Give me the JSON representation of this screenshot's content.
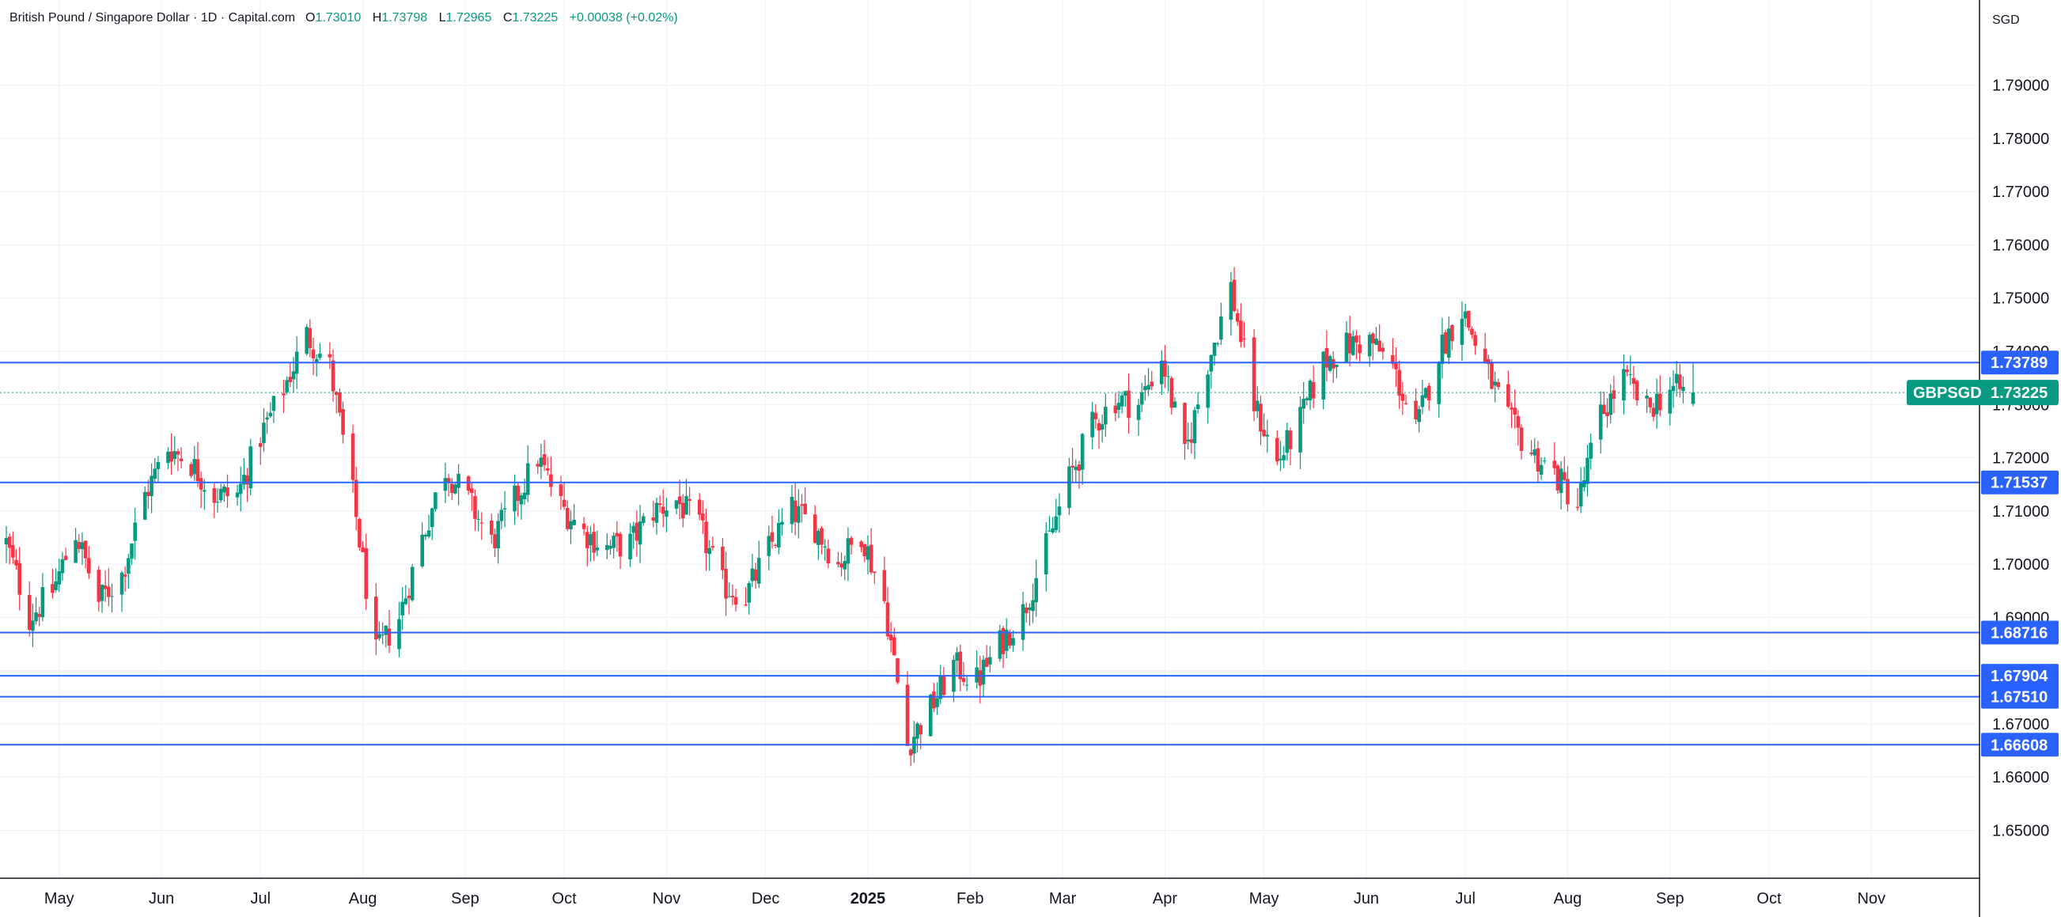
{
  "header": {
    "title": "British Pound / Singapore Dollar · 1D · Capital.com",
    "open_label": "O",
    "open": "1.73010",
    "high_label": "H",
    "high": "1.73798",
    "low_label": "L",
    "low": "1.72965",
    "close_label": "C",
    "close": "1.73225",
    "change": "+0.00038 (+0.02%)"
  },
  "currency": "SGD",
  "symbol_tag": {
    "symbol": "GBPSGD",
    "price": "1.73225",
    "value": 1.73225,
    "color": "#089981"
  },
  "colors": {
    "up": "#089981",
    "down": "#f23645",
    "hline": "#2962ff",
    "grid": "#eef1f6",
    "axis": "#131722"
  },
  "chart_data": {
    "type": "candlestick",
    "title": "British Pound / Singapore Dollar · 1D · Capital.com",
    "ylabel": "SGD",
    "ylim": [
      1.641,
      1.806
    ],
    "grid": true,
    "y_ticks": [
      {
        "value": 1.79,
        "label": "1.79000"
      },
      {
        "value": 1.78,
        "label": "1.78000"
      },
      {
        "value": 1.77,
        "label": "1.77000"
      },
      {
        "value": 1.76,
        "label": "1.76000"
      },
      {
        "value": 1.75,
        "label": "1.75000"
      },
      {
        "value": 1.74,
        "label": "1.74000"
      },
      {
        "value": 1.73,
        "label": "1.73000"
      },
      {
        "value": 1.72,
        "label": "1.72000"
      },
      {
        "value": 1.71,
        "label": "1.71000"
      },
      {
        "value": 1.7,
        "label": "1.70000"
      },
      {
        "value": 1.69,
        "label": "1.69000"
      },
      {
        "value": 1.68,
        "label": "1.68000"
      },
      {
        "value": 1.67,
        "label": "1.67000"
      },
      {
        "value": 1.66,
        "label": "1.66000"
      },
      {
        "value": 1.65,
        "label": "1.65000"
      }
    ],
    "x_ticks": [
      {
        "label": "May",
        "bold": false
      },
      {
        "label": "Jun",
        "bold": false
      },
      {
        "label": "Jul",
        "bold": false
      },
      {
        "label": "Aug",
        "bold": false
      },
      {
        "label": "Sep",
        "bold": false
      },
      {
        "label": "Oct",
        "bold": false
      },
      {
        "label": "Nov",
        "bold": false
      },
      {
        "label": "Dec",
        "bold": false
      },
      {
        "label": "2025",
        "bold": true
      },
      {
        "label": "Feb",
        "bold": false
      },
      {
        "label": "Mar",
        "bold": false
      },
      {
        "label": "Apr",
        "bold": false
      },
      {
        "label": "May",
        "bold": false
      },
      {
        "label": "Jun",
        "bold": false
      },
      {
        "label": "Jul",
        "bold": false
      },
      {
        "label": "Aug",
        "bold": false
      },
      {
        "label": "Sep",
        "bold": false
      },
      {
        "label": "Oct",
        "bold": false
      },
      {
        "label": "Nov",
        "bold": false
      }
    ],
    "horizontal_lines": [
      {
        "value": 1.73789,
        "label": "1.73789"
      },
      {
        "value": 1.71537,
        "label": "1.71537"
      },
      {
        "value": 1.68716,
        "label": "1.68716"
      },
      {
        "value": 1.67904,
        "label": "1.67904"
      },
      {
        "value": 1.6751,
        "label": "1.67510"
      },
      {
        "value": 1.66608,
        "label": "1.66608"
      }
    ],
    "series": [
      {
        "name": "GBPSGD",
        "close_path": [
          {
            "d": "2024-04-15",
            "c": 1.704
          },
          {
            "d": "2024-04-22",
            "c": 1.69
          },
          {
            "d": "2024-04-29",
            "c": 1.695
          },
          {
            "d": "2024-05-06",
            "c": 1.706
          },
          {
            "d": "2024-05-13",
            "c": 1.693
          },
          {
            "d": "2024-05-20",
            "c": 1.698
          },
          {
            "d": "2024-05-27",
            "c": 1.713
          },
          {
            "d": "2024-06-03",
            "c": 1.722
          },
          {
            "d": "2024-06-10",
            "c": 1.719
          },
          {
            "d": "2024-06-17",
            "c": 1.713
          },
          {
            "d": "2024-06-24",
            "c": 1.713
          },
          {
            "d": "2024-07-01",
            "c": 1.724
          },
          {
            "d": "2024-07-08",
            "c": 1.733
          },
          {
            "d": "2024-07-15",
            "c": 1.743
          },
          {
            "d": "2024-07-22",
            "c": 1.737
          },
          {
            "d": "2024-07-29",
            "c": 1.713
          },
          {
            "d": "2024-08-05",
            "c": 1.683
          },
          {
            "d": "2024-08-12",
            "c": 1.69
          },
          {
            "d": "2024-08-19",
            "c": 1.705
          },
          {
            "d": "2024-08-26",
            "c": 1.718
          },
          {
            "d": "2024-09-02",
            "c": 1.712
          },
          {
            "d": "2024-09-09",
            "c": 1.704
          },
          {
            "d": "2024-09-16",
            "c": 1.712
          },
          {
            "d": "2024-09-23",
            "c": 1.72
          },
          {
            "d": "2024-09-30",
            "c": 1.711
          },
          {
            "d": "2024-10-07",
            "c": 1.706
          },
          {
            "d": "2024-10-14",
            "c": 1.703
          },
          {
            "d": "2024-10-21",
            "c": 1.704
          },
          {
            "d": "2024-10-28",
            "c": 1.71
          },
          {
            "d": "2024-11-04",
            "c": 1.712
          },
          {
            "d": "2024-11-11",
            "c": 1.707
          },
          {
            "d": "2024-11-18",
            "c": 1.696
          },
          {
            "d": "2024-11-25",
            "c": 1.694
          },
          {
            "d": "2024-12-02",
            "c": 1.703
          },
          {
            "d": "2024-12-09",
            "c": 1.71
          },
          {
            "d": "2024-12-16",
            "c": 1.707
          },
          {
            "d": "2024-12-23",
            "c": 1.7
          },
          {
            "d": "2024-12-30",
            "c": 1.706
          },
          {
            "d": "2025-01-06",
            "c": 1.693
          },
          {
            "d": "2025-01-13",
            "c": 1.666
          },
          {
            "d": "2025-01-20",
            "c": 1.673
          },
          {
            "d": "2025-01-27",
            "c": 1.681
          },
          {
            "d": "2025-02-03",
            "c": 1.678
          },
          {
            "d": "2025-02-10",
            "c": 1.685
          },
          {
            "d": "2025-02-17",
            "c": 1.691
          },
          {
            "d": "2025-02-24",
            "c": 1.703
          },
          {
            "d": "2025-03-03",
            "c": 1.716
          },
          {
            "d": "2025-03-10",
            "c": 1.726
          },
          {
            "d": "2025-03-17",
            "c": 1.731
          },
          {
            "d": "2025-03-24",
            "c": 1.73
          },
          {
            "d": "2025-03-31",
            "c": 1.739
          },
          {
            "d": "2025-04-07",
            "c": 1.72
          },
          {
            "d": "2025-04-14",
            "c": 1.738
          },
          {
            "d": "2025-04-21",
            "c": 1.752
          },
          {
            "d": "2025-04-28",
            "c": 1.73
          },
          {
            "d": "2025-05-05",
            "c": 1.719
          },
          {
            "d": "2025-05-12",
            "c": 1.727
          },
          {
            "d": "2025-05-19",
            "c": 1.738
          },
          {
            "d": "2025-05-26",
            "c": 1.741
          },
          {
            "d": "2025-06-02",
            "c": 1.742
          },
          {
            "d": "2025-06-09",
            "c": 1.737
          },
          {
            "d": "2025-06-16",
            "c": 1.725
          },
          {
            "d": "2025-06-23",
            "c": 1.74
          },
          {
            "d": "2025-06-30",
            "c": 1.748
          },
          {
            "d": "2025-07-07",
            "c": 1.737
          },
          {
            "d": "2025-07-14",
            "c": 1.727
          },
          {
            "d": "2025-07-21",
            "c": 1.721
          },
          {
            "d": "2025-07-28",
            "c": 1.717
          },
          {
            "d": "2025-08-04",
            "c": 1.711
          },
          {
            "d": "2025-08-11",
            "c": 1.728
          },
          {
            "d": "2025-08-18",
            "c": 1.735
          },
          {
            "d": "2025-08-25",
            "c": 1.729
          },
          {
            "d": "2025-09-01",
            "c": 1.733
          },
          {
            "d": "2025-09-08",
            "c": 1.73225
          }
        ]
      }
    ]
  }
}
